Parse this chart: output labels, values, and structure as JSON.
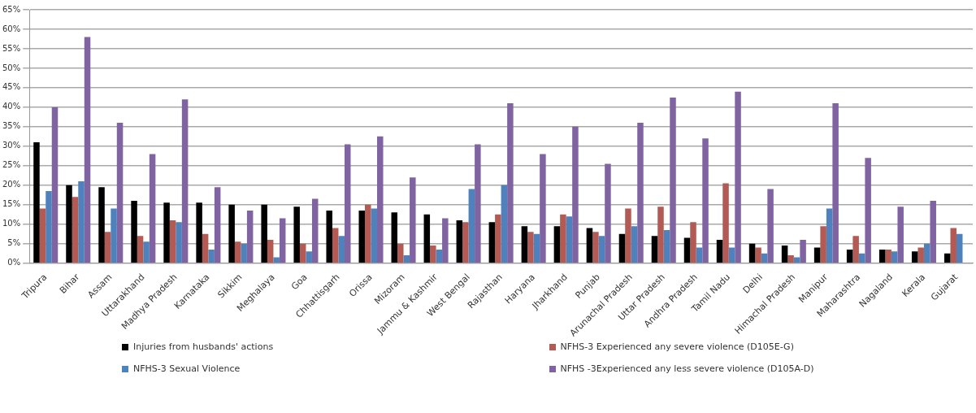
{
  "chart_data": {
    "type": "bar",
    "categories": [
      "Tripura",
      "Bihar",
      "Assam",
      "Uttarakhand",
      "Madhya Pradesh",
      "Karnataka",
      "Sikkim",
      "Meghalaya",
      "Goa",
      "Chhattisgarh",
      "Orissa",
      "Mizoram",
      "Jammu & Kashmir",
      "West Bengal",
      "Rajasthan",
      "Haryana",
      "Jharkhand",
      "Punjab",
      "Arunachal Pradesh",
      "Uttar Pradesh",
      "Andhra Pradesh",
      "Tamil Nadu",
      "Delhi",
      "Himachal Pradesh",
      "Manipur",
      "Maharashtra",
      "Nagaland",
      "Kerala",
      "Gujarat"
    ],
    "series": [
      {
        "name": "Injuries from husbands' actions",
        "color": "#000000",
        "values": [
          31,
          20,
          19.5,
          16,
          15.5,
          15.5,
          15,
          15,
          14.5,
          13.5,
          13.5,
          13,
          12.5,
          11,
          10.5,
          9.5,
          9.5,
          9,
          7.5,
          7,
          6.5,
          6,
          5,
          4.5,
          4,
          3.5,
          3.5,
          3,
          2.5
        ]
      },
      {
        "name": "NFHS-3 Experienced any severe violence (D105E-G)",
        "color": "#b35a55",
        "values": [
          14,
          17,
          8,
          7,
          11,
          7.5,
          5.5,
          6,
          5,
          9,
          15,
          5,
          4.5,
          10.5,
          12.5,
          8,
          12.5,
          8,
          14,
          14.5,
          10.5,
          20.5,
          4,
          2,
          9.5,
          7,
          3.5,
          4,
          9
        ]
      },
      {
        "name": "NFHS-3 Sexual Violence",
        "color": "#4f81bd",
        "values": [
          18.5,
          21,
          14,
          5.5,
          10.5,
          3.5,
          5,
          1.5,
          3,
          7,
          14,
          2,
          3.5,
          19,
          20,
          7.5,
          12,
          7,
          9.5,
          8.5,
          4,
          4,
          2.5,
          1.5,
          14,
          2.5,
          3,
          5,
          7.5
        ]
      },
      {
        "name": "NFHS -3Experienced any less severe violence (D105A-D)",
        "color": "#8064a2",
        "values": [
          40,
          58,
          36,
          28,
          42,
          19.5,
          13.5,
          11.5,
          16.5,
          30.5,
          32.5,
          22,
          11.5,
          30.5,
          41,
          28,
          35,
          25.5,
          36,
          42.5,
          32,
          44,
          19,
          6,
          41,
          27,
          14.5,
          16,
          null
        ]
      }
    ],
    "ylim": [
      0,
      65
    ],
    "yticks": [
      {
        "value": 0,
        "label": "0%"
      },
      {
        "value": 5,
        "label": "5%"
      },
      {
        "value": 10,
        "label": "10%"
      },
      {
        "value": 15,
        "label": "15%"
      },
      {
        "value": 20,
        "label": "20%"
      },
      {
        "value": 25,
        "label": "25%"
      },
      {
        "value": 30,
        "label": "30%"
      },
      {
        "value": 35,
        "label": "35%"
      },
      {
        "value": 40,
        "label": "40%"
      },
      {
        "value": 45,
        "label": "45%"
      },
      {
        "value": 50,
        "label": "50%"
      },
      {
        "value": 55,
        "label": "55%"
      },
      {
        "value": 60,
        "label": "60%"
      },
      {
        "value": 65,
        "label": "65%"
      }
    ],
    "grid": "y",
    "legend": "bottom"
  }
}
